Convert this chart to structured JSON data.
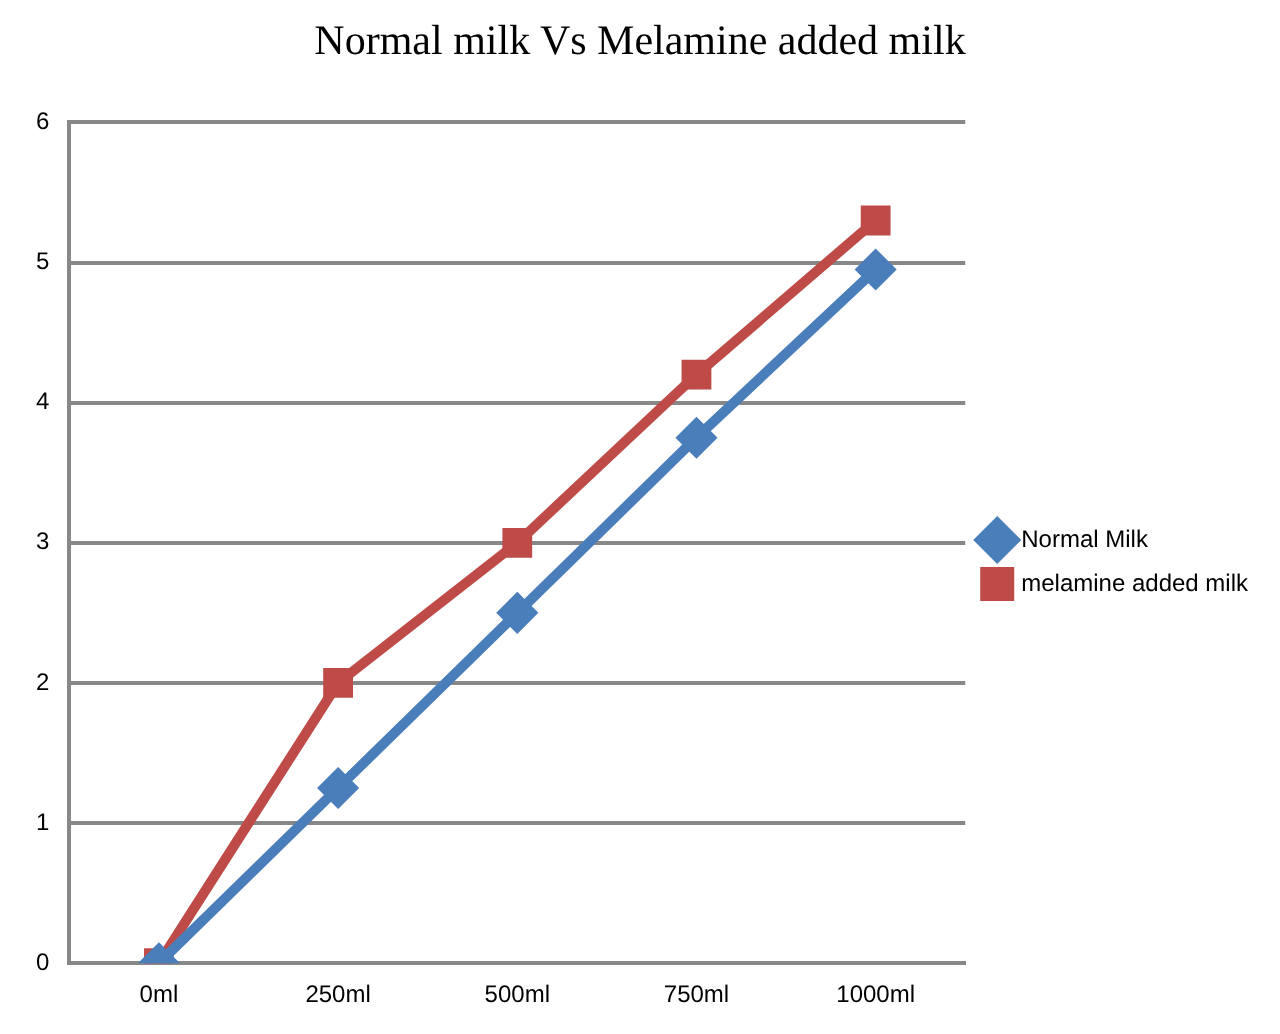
{
  "chart_data": {
    "type": "line",
    "title": "Normal milk Vs Melamine added milk",
    "categories": [
      "0ml",
      "250ml",
      "500ml",
      "750ml",
      "1000ml"
    ],
    "series": [
      {
        "name": "Normal Milk",
        "color": "#4a7ebb",
        "marker": "diamond",
        "values": [
          0,
          1.25,
          2.5,
          3.75,
          4.95
        ]
      },
      {
        "name": "melamine added milk",
        "color": "#be4b48",
        "marker": "square",
        "values": [
          0,
          2.0,
          3.0,
          4.2,
          5.3
        ]
      }
    ],
    "ylim": [
      0,
      6
    ],
    "yticks": [
      0,
      1,
      2,
      3,
      4,
      5,
      6
    ],
    "grid": "y",
    "legend": "right"
  }
}
